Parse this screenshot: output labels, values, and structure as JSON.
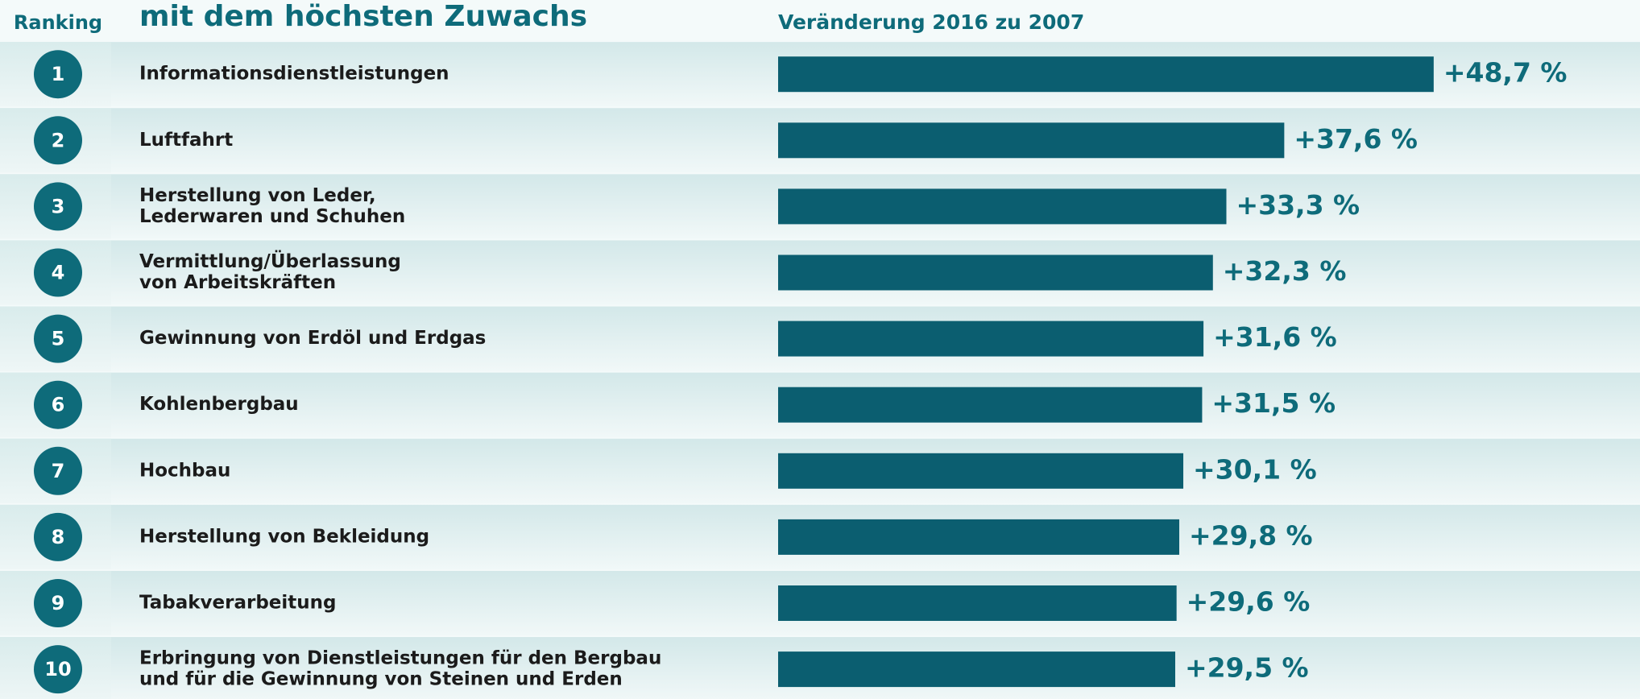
{
  "chart_data": {
    "type": "bar",
    "orientation": "horizontal",
    "title": "mit dem höchsten Zuwachs",
    "rank_header": "Ranking",
    "subtitle": "Veränderung 2016 zu 2007",
    "ranks": [
      1,
      2,
      3,
      4,
      5,
      6,
      7,
      8,
      9,
      10
    ],
    "categories": [
      [
        "Informationsdienstleistungen"
      ],
      [
        "Luftfahrt"
      ],
      [
        "Herstellung von Leder,",
        "Lederwaren und Schuhen"
      ],
      [
        "Vermittlung/Überlassung",
        "von Arbeitskräften"
      ],
      [
        "Gewinnung von Erdöl und Erdgas"
      ],
      [
        "Kohlenbergbau"
      ],
      [
        "Hochbau"
      ],
      [
        "Herstellung von Bekleidung"
      ],
      [
        "Tabakverarbeitung"
      ],
      [
        "Erbringung von Dienstleistungen für den Bergbau",
        "und für die Gewinnung von Steinen und Erden"
      ]
    ],
    "values": [
      48.7,
      37.6,
      33.3,
      32.3,
      31.6,
      31.5,
      30.1,
      29.8,
      29.6,
      29.5
    ],
    "value_labels": [
      "+48,7 %",
      "+37,6 %",
      "+33,3 %",
      "+32,3 %",
      "+31,6 %",
      "+31,5 %",
      "+30,1 %",
      "+29,8 %",
      "+29,6 %",
      "+29,5 %"
    ],
    "color": "#0b5e70"
  }
}
